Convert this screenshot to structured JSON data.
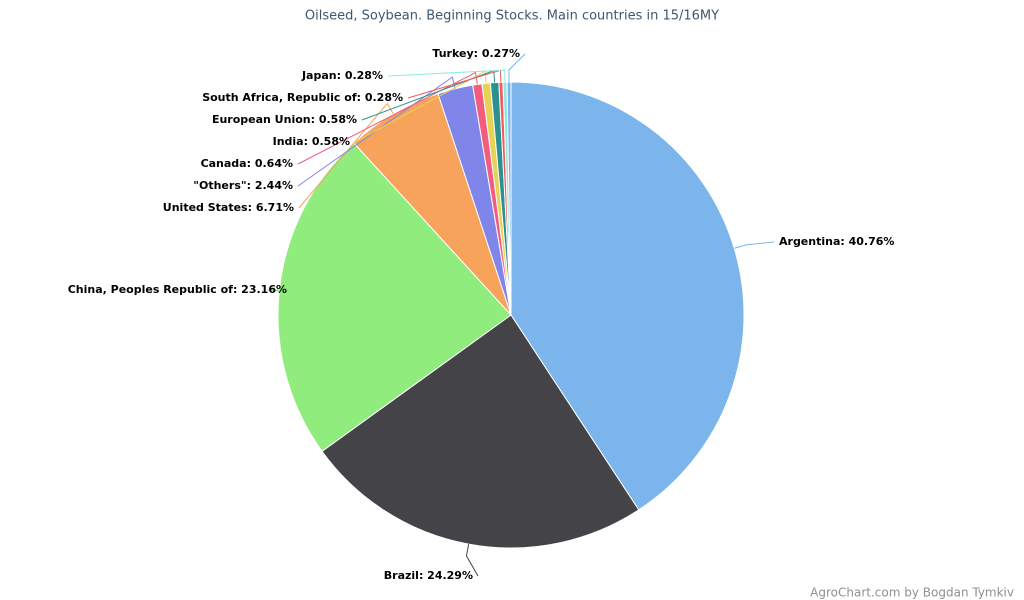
{
  "chart_data": {
    "type": "pie",
    "title": "Oilseed, Soybean. Beginning Stocks. Main countries in 15/16MY",
    "credit": "AgroChart.com by Bogdan Tymkiv",
    "values": [
      40.76,
      24.29,
      23.16,
      6.71,
      2.44,
      0.64,
      0.58,
      0.58,
      0.28,
      0.28,
      0.27
    ],
    "value_labels": [
      "Argentina: 40.76%",
      "Brazil: 24.29%",
      "China, Peoples Republic of: 23.16%",
      "United States: 6.71%",
      "\"Others\": 2.44%",
      "Canada: 0.64%",
      "India: 0.58%",
      "European Union: 0.58%",
      "South Africa, Republic of: 0.28%",
      "Japan: 0.28%",
      "Turkey: 0.27%"
    ],
    "colors": [
      "#7cb5ec",
      "#434348",
      "#90ed7d",
      "#f7a35c",
      "#8085e9",
      "#f15c80",
      "#e4d354",
      "#2b908f",
      "#f45b5b",
      "#91e8e1",
      "#7cb5ec"
    ]
  }
}
